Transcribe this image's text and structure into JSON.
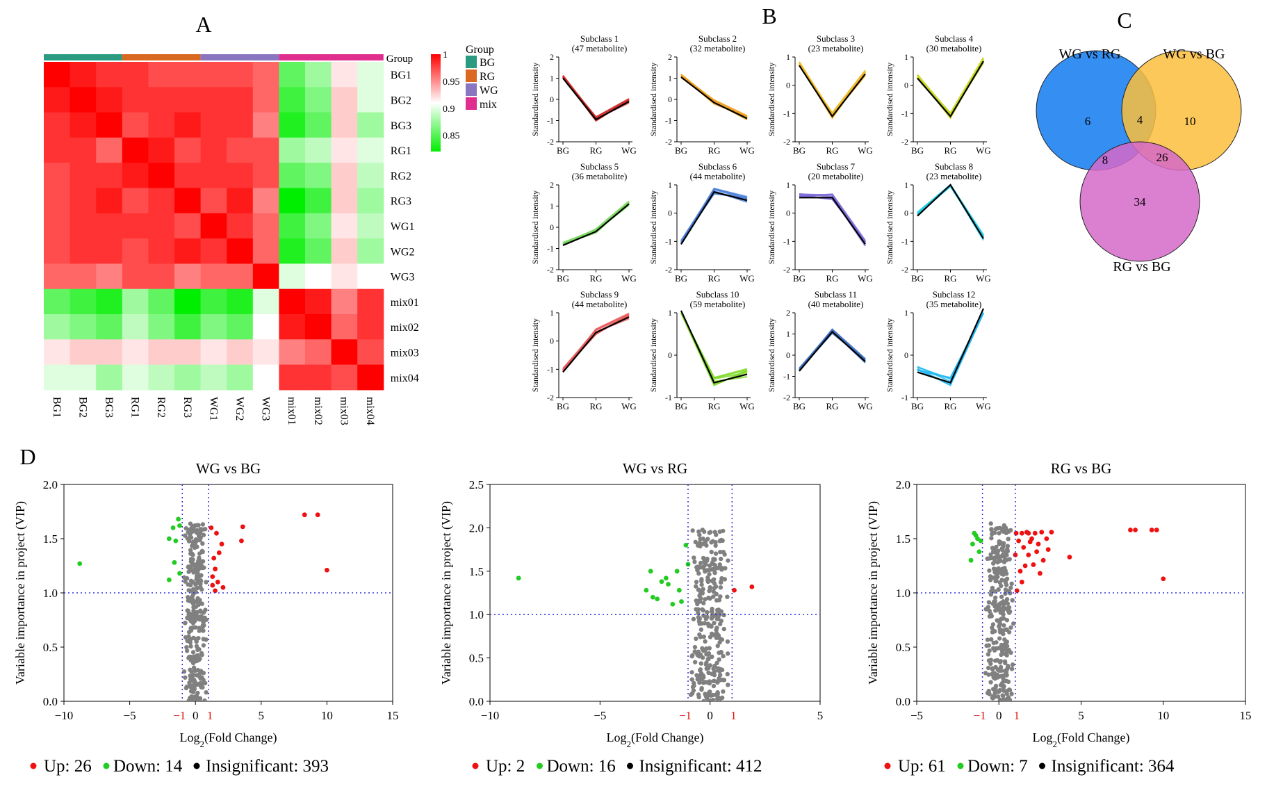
{
  "panel_labels": {
    "A": "A",
    "B": "B",
    "C": "C",
    "D": "D"
  },
  "heatmap": {
    "samples": [
      "BG1",
      "BG2",
      "BG3",
      "RG1",
      "RG2",
      "RG3",
      "WG1",
      "WG2",
      "WG3",
      "mix01",
      "mix02",
      "mix03",
      "mix04"
    ],
    "group_title": "Group",
    "group_legend_title": "Group",
    "groups": [
      {
        "name": "BG",
        "color": "#2a9a80",
        "span": 3
      },
      {
        "name": "RG",
        "color": "#d96820",
        "span": 3
      },
      {
        "name": "WG",
        "color": "#8a76c0",
        "span": 3
      },
      {
        "name": "mix",
        "color": "#e02e8e",
        "span": 4
      }
    ],
    "scale_ticks": [
      "1",
      "0.95",
      "0.9",
      "0.85"
    ],
    "scale_range": [
      0.82,
      1.0
    ],
    "colors": {
      "high": "#ff0000",
      "mid": "#ffffff",
      "low": "#00ee00"
    },
    "matrix": [
      [
        1.0,
        0.99,
        0.98,
        0.98,
        0.97,
        0.97,
        0.97,
        0.97,
        0.96,
        0.85,
        0.87,
        0.91,
        0.89
      ],
      [
        0.99,
        1.0,
        0.99,
        0.98,
        0.98,
        0.98,
        0.98,
        0.98,
        0.96,
        0.84,
        0.86,
        0.92,
        0.89
      ],
      [
        0.98,
        0.99,
        1.0,
        0.97,
        0.98,
        0.99,
        0.98,
        0.98,
        0.95,
        0.83,
        0.85,
        0.92,
        0.87
      ],
      [
        0.98,
        0.98,
        0.96,
        1.0,
        0.99,
        0.97,
        0.98,
        0.97,
        0.97,
        0.87,
        0.88,
        0.91,
        0.89
      ],
      [
        0.97,
        0.98,
        0.98,
        0.99,
        1.0,
        0.98,
        0.98,
        0.98,
        0.97,
        0.85,
        0.86,
        0.92,
        0.88
      ],
      [
        0.97,
        0.98,
        0.99,
        0.97,
        0.98,
        1.0,
        0.97,
        0.99,
        0.95,
        0.82,
        0.84,
        0.92,
        0.87
      ],
      [
        0.97,
        0.98,
        0.98,
        0.98,
        0.98,
        0.97,
        1.0,
        0.98,
        0.96,
        0.84,
        0.86,
        0.91,
        0.88
      ],
      [
        0.97,
        0.98,
        0.98,
        0.97,
        0.98,
        0.99,
        0.98,
        1.0,
        0.96,
        0.83,
        0.85,
        0.92,
        0.87
      ],
      [
        0.96,
        0.96,
        0.95,
        0.97,
        0.97,
        0.95,
        0.96,
        0.96,
        1.0,
        0.89,
        0.9,
        0.91,
        0.9
      ],
      [
        0.85,
        0.84,
        0.83,
        0.87,
        0.85,
        0.82,
        0.84,
        0.83,
        0.89,
        1.0,
        0.99,
        0.95,
        0.98
      ],
      [
        0.87,
        0.86,
        0.85,
        0.88,
        0.86,
        0.84,
        0.86,
        0.85,
        0.9,
        0.99,
        1.0,
        0.96,
        0.98
      ],
      [
        0.91,
        0.92,
        0.92,
        0.91,
        0.92,
        0.92,
        0.91,
        0.92,
        0.91,
        0.95,
        0.96,
        1.0,
        0.97
      ],
      [
        0.89,
        0.89,
        0.87,
        0.89,
        0.88,
        0.87,
        0.88,
        0.87,
        0.9,
        0.98,
        0.98,
        0.97,
        1.0
      ]
    ]
  },
  "subclass": {
    "ylabel": "Standardised intensity",
    "categories": [
      "BG",
      "RG",
      "WG"
    ],
    "panels": [
      {
        "title": "Subclass 1",
        "subtitle": "(47 metabolite)",
        "color": "#d12a2a",
        "ylim": [
          -2,
          2
        ],
        "yticks": [
          -2,
          -1,
          0,
          1,
          2
        ],
        "mean": [
          1.0,
          -0.95,
          -0.1
        ]
      },
      {
        "title": "Subclass 2",
        "subtitle": "(32 metabolite)",
        "color": "#f0a020",
        "ylim": [
          -2,
          2
        ],
        "yticks": [
          -2,
          -1,
          0,
          1,
          2
        ],
        "mean": [
          1.05,
          -0.15,
          -0.9
        ]
      },
      {
        "title": "Subclass 3",
        "subtitle": "(23 metabolite)",
        "color": "#f0b820",
        "ylim": [
          -2,
          1
        ],
        "yticks": [
          -2,
          -1,
          0,
          1
        ],
        "mean": [
          0.7,
          -1.1,
          0.4
        ]
      },
      {
        "title": "Subclass 4",
        "subtitle": "(30 metabolite)",
        "color": "#c8d820",
        "ylim": [
          -2,
          1
        ],
        "yticks": [
          -2,
          -1,
          0,
          1
        ],
        "mean": [
          0.25,
          -1.1,
          0.85
        ]
      },
      {
        "title": "Subclass 5",
        "subtitle": "(36 metabolite)",
        "color": "#7bd860",
        "ylim": [
          -2,
          2
        ],
        "yticks": [
          -2,
          -1,
          0,
          1,
          2
        ],
        "mean": [
          -0.85,
          -0.2,
          1.1
        ]
      },
      {
        "title": "Subclass 6",
        "subtitle": "(44 metabolite)",
        "color": "#4a7ed8",
        "ylim": [
          -2,
          1
        ],
        "yticks": [
          -2,
          -1,
          0,
          1
        ],
        "mean": [
          -1.1,
          0.75,
          0.45
        ]
      },
      {
        "title": "Subclass 7",
        "subtitle": "(20 metabolite)",
        "color": "#7a6ad8",
        "ylim": [
          -2,
          1
        ],
        "yticks": [
          -2,
          -1,
          0,
          1
        ],
        "mean": [
          0.55,
          0.55,
          -1.1
        ]
      },
      {
        "title": "Subclass 8",
        "subtitle": "(23 metabolite)",
        "color": "#20d0e8",
        "ylim": [
          -2,
          1
        ],
        "yticks": [
          -2,
          -1,
          0,
          1
        ],
        "mean": [
          -0.1,
          1.0,
          -0.9
        ]
      },
      {
        "title": "Subclass 9",
        "subtitle": "(44 metabolite)",
        "color": "#e85a5a",
        "ylim": [
          -2,
          1
        ],
        "yticks": [
          -2,
          -1,
          0,
          1
        ],
        "mean": [
          -1.1,
          0.3,
          0.85
        ]
      },
      {
        "title": "Subclass 10",
        "subtitle": "(59 metabolite)",
        "color": "#7ad820",
        "ylim": [
          -1,
          1
        ],
        "yticks": [
          -1,
          0,
          1
        ],
        "mean": [
          1.05,
          -0.65,
          -0.45
        ]
      },
      {
        "title": "Subclass 11",
        "subtitle": "(40 metabolite)",
        "color": "#3c70c0",
        "ylim": [
          -2,
          2
        ],
        "yticks": [
          -2,
          -1,
          0,
          1,
          2
        ],
        "mean": [
          -0.75,
          1.1,
          -0.3
        ]
      },
      {
        "title": "Subclass 12",
        "subtitle": "(35 metabolite)",
        "color": "#20b8f0",
        "ylim": [
          -1,
          1
        ],
        "yticks": [
          -1,
          0,
          1
        ],
        "mean": [
          -0.4,
          -0.65,
          1.1
        ]
      }
    ]
  },
  "venn": {
    "sets": [
      {
        "label": "WG vs RG",
        "color": "#2a88f0"
      },
      {
        "label": "WG vs BG",
        "color": "#fbbe3c"
      },
      {
        "label": "RG vs BG",
        "color": "#d568c8"
      }
    ],
    "counts": {
      "only_a": "6",
      "a_b": "4",
      "only_b": "10",
      "a_c": "8",
      "b_c": "26",
      "only_c": "34"
    }
  },
  "volcano": {
    "ylabel": "Variable importance in project (VIP)",
    "xlabel_prefix": "Log",
    "xlabel_sub": "2",
    "xlabel_suffix": "(Fold Change)",
    "up_color": "#ee1111",
    "down_color": "#22cc22",
    "insig_color": "#808080",
    "panels": [
      {
        "title": "WG vs BG",
        "xlim": [
          -10,
          15
        ],
        "xticks": [
          -10,
          -5,
          0,
          5,
          10,
          15
        ],
        "ylim": [
          0,
          2.0
        ],
        "yticks": [
          "0.0",
          "0.5",
          "1.0",
          "1.5",
          "2.0"
        ],
        "legend": {
          "up": "Up: 26",
          "down": "Down: 14",
          "insig": "Insignificant: 393"
        },
        "up_points": [
          [
            8.3,
            1.72
          ],
          [
            9.3,
            1.72
          ],
          [
            3.6,
            1.61
          ],
          [
            3.5,
            1.48
          ],
          [
            10.0,
            1.21
          ],
          [
            2.0,
            1.45
          ],
          [
            1.6,
            1.55
          ],
          [
            1.4,
            1.32
          ],
          [
            1.5,
            1.22
          ],
          [
            1.3,
            1.15
          ],
          [
            1.7,
            1.1
          ],
          [
            2.1,
            1.05
          ],
          [
            1.2,
            1.6
          ],
          [
            1.8,
            1.37
          ],
          [
            1.3,
            1.07
          ],
          [
            1.5,
            1.02
          ]
        ],
        "down_points": [
          [
            -8.8,
            1.27
          ],
          [
            -1.3,
            1.68
          ],
          [
            -1.2,
            1.62
          ],
          [
            -1.7,
            1.6
          ],
          [
            -2.0,
            1.5
          ],
          [
            -1.5,
            1.48
          ],
          [
            -1.6,
            1.28
          ],
          [
            -1.2,
            1.18
          ],
          [
            -2.0,
            1.12
          ]
        ]
      },
      {
        "title": "WG vs RG",
        "xlim": [
          -10,
          5
        ],
        "xticks": [
          -10,
          -5,
          0,
          5
        ],
        "ylim": [
          0,
          2.5
        ],
        "yticks": [
          "0.0",
          "0.5",
          "1.0",
          "1.5",
          "2.0",
          "2.5"
        ],
        "legend": {
          "up": "Up: 2",
          "down": "Down: 16",
          "insig": "Insignificant: 412"
        },
        "up_points": [
          [
            1.9,
            1.32
          ],
          [
            1.1,
            1.28
          ]
        ],
        "down_points": [
          [
            -8.7,
            1.42
          ],
          [
            -2.7,
            1.5
          ],
          [
            -2.2,
            1.38
          ],
          [
            -2.0,
            1.42
          ],
          [
            -2.9,
            1.28
          ],
          [
            -2.4,
            1.18
          ],
          [
            -1.7,
            1.12
          ],
          [
            -1.3,
            1.15
          ],
          [
            -1.4,
            1.28
          ],
          [
            -1.5,
            1.5
          ],
          [
            -1.0,
            1.58
          ],
          [
            -1.1,
            1.8
          ],
          [
            -1.9,
            1.35
          ],
          [
            -2.6,
            1.2
          ]
        ]
      },
      {
        "title": "RG vs BG",
        "xlim": [
          -5,
          15
        ],
        "xticks": [
          -5,
          0,
          5,
          10,
          15
        ],
        "ylim": [
          0,
          2.0
        ],
        "yticks": [
          "0.0",
          "0.5",
          "1.0",
          "1.5",
          "2.0"
        ],
        "legend": {
          "up": "Up: 61",
          "down": "Down: 7",
          "insig": "Insignificant: 364"
        },
        "up_points": [
          [
            8.0,
            1.58
          ],
          [
            8.3,
            1.58
          ],
          [
            9.3,
            1.58
          ],
          [
            9.6,
            1.58
          ],
          [
            10.0,
            1.13
          ],
          [
            4.3,
            1.33
          ],
          [
            2.9,
            1.5
          ],
          [
            3.2,
            1.56
          ],
          [
            2.7,
            1.3
          ],
          [
            2.4,
            1.45
          ],
          [
            2.2,
            1.55
          ],
          [
            2.0,
            1.5
          ],
          [
            1.8,
            1.35
          ],
          [
            1.6,
            1.25
          ],
          [
            1.4,
            1.55
          ],
          [
            1.2,
            1.48
          ],
          [
            1.5,
            1.42
          ],
          [
            1.7,
            1.56
          ],
          [
            1.9,
            1.47
          ],
          [
            2.3,
            1.38
          ],
          [
            1.3,
            1.2
          ],
          [
            1.1,
            1.02
          ],
          [
            2.5,
            1.18
          ],
          [
            1.0,
            1.35
          ],
          [
            1.05,
            1.55
          ],
          [
            2.6,
            1.56
          ],
          [
            1.4,
            1.1
          ],
          [
            1.8,
            1.55
          ],
          [
            2.1,
            1.26
          ],
          [
            3.0,
            1.4
          ]
        ],
        "down_points": [
          [
            -1.5,
            1.55
          ],
          [
            -1.3,
            1.5
          ],
          [
            -1.6,
            1.45
          ],
          [
            -1.2,
            1.38
          ],
          [
            -1.7,
            1.3
          ],
          [
            -1.4,
            1.53
          ],
          [
            -1.1,
            1.48
          ]
        ]
      }
    ]
  }
}
